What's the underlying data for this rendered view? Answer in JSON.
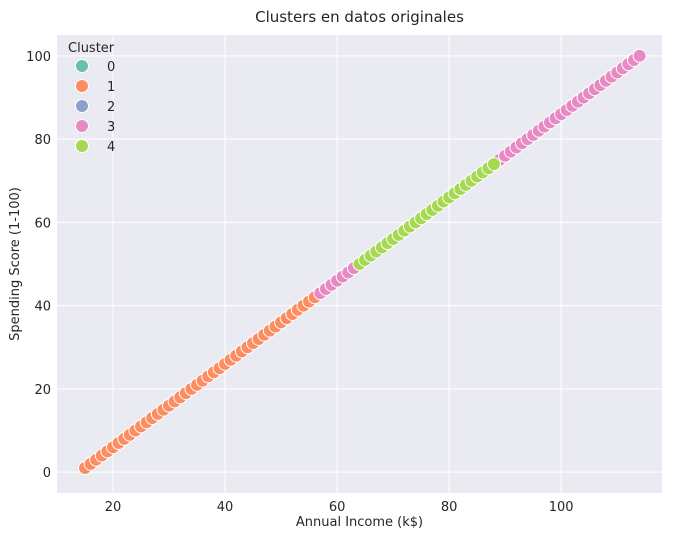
{
  "chart_data": {
    "type": "scatter",
    "title": "Clusters en datos originales",
    "xlabel": "Annual Income (k$)",
    "ylabel": "Spending Score (1-100)",
    "xlim": [
      10,
      118
    ],
    "ylim": [
      -5,
      105
    ],
    "xticks": [
      20,
      40,
      60,
      80,
      100
    ],
    "yticks": [
      0,
      20,
      40,
      60,
      80,
      100
    ],
    "grid": true,
    "legend": {
      "title": "Cluster",
      "placement": "top-left"
    },
    "palette": {
      "0": "#66c2a5",
      "1": "#fc8d62",
      "2": "#8da0cb",
      "3": "#e78ac3",
      "4": "#a6d854"
    },
    "background": "#eaeaf2",
    "series": [
      {
        "name": "0",
        "points": []
      },
      {
        "name": "1",
        "points": [
          [
            15,
            1
          ],
          [
            16,
            2
          ],
          [
            17,
            3
          ],
          [
            18,
            4
          ],
          [
            19,
            5
          ],
          [
            20,
            6
          ],
          [
            21,
            7
          ],
          [
            22,
            8
          ],
          [
            23,
            9
          ],
          [
            24,
            10
          ],
          [
            25,
            11
          ],
          [
            26,
            12
          ],
          [
            27,
            13
          ],
          [
            28,
            14
          ],
          [
            29,
            15
          ],
          [
            30,
            16
          ],
          [
            31,
            17
          ],
          [
            32,
            18
          ],
          [
            33,
            19
          ],
          [
            34,
            20
          ],
          [
            35,
            21
          ],
          [
            36,
            22
          ],
          [
            37,
            23
          ],
          [
            38,
            24
          ],
          [
            39,
            25
          ],
          [
            40,
            26
          ],
          [
            41,
            27
          ],
          [
            42,
            28
          ],
          [
            43,
            29
          ],
          [
            44,
            30
          ],
          [
            45,
            31
          ],
          [
            46,
            32
          ],
          [
            47,
            33
          ],
          [
            48,
            34
          ],
          [
            49,
            35
          ],
          [
            50,
            36
          ],
          [
            51,
            37
          ],
          [
            52,
            38
          ],
          [
            53,
            39
          ],
          [
            54,
            40
          ],
          [
            55,
            41
          ],
          [
            56,
            42
          ]
        ]
      },
      {
        "name": "2",
        "points": []
      },
      {
        "name": "3",
        "points": [
          [
            57,
            43
          ],
          [
            58,
            44
          ],
          [
            59,
            45
          ],
          [
            60,
            46
          ],
          [
            61,
            47
          ],
          [
            62,
            48
          ],
          [
            63,
            49
          ],
          [
            89,
            75
          ],
          [
            90,
            76
          ],
          [
            91,
            77
          ],
          [
            92,
            78
          ],
          [
            93,
            79
          ],
          [
            94,
            80
          ],
          [
            95,
            81
          ],
          [
            96,
            82
          ],
          [
            97,
            83
          ],
          [
            98,
            84
          ],
          [
            99,
            85
          ],
          [
            100,
            86
          ],
          [
            101,
            87
          ],
          [
            102,
            88
          ],
          [
            103,
            89
          ],
          [
            104,
            90
          ],
          [
            105,
            91
          ],
          [
            106,
            92
          ],
          [
            107,
            93
          ],
          [
            108,
            94
          ],
          [
            109,
            95
          ],
          [
            110,
            96
          ],
          [
            111,
            97
          ],
          [
            112,
            98
          ],
          [
            113,
            99
          ],
          [
            114,
            100
          ]
        ]
      },
      {
        "name": "4",
        "points": [
          [
            64,
            50
          ],
          [
            65,
            51
          ],
          [
            66,
            52
          ],
          [
            67,
            53
          ],
          [
            68,
            54
          ],
          [
            69,
            55
          ],
          [
            70,
            56
          ],
          [
            71,
            57
          ],
          [
            72,
            58
          ],
          [
            73,
            59
          ],
          [
            74,
            60
          ],
          [
            75,
            61
          ],
          [
            76,
            62
          ],
          [
            77,
            63
          ],
          [
            78,
            64
          ],
          [
            79,
            65
          ],
          [
            80,
            66
          ],
          [
            81,
            67
          ],
          [
            82,
            68
          ],
          [
            83,
            69
          ],
          [
            84,
            70
          ],
          [
            85,
            71
          ],
          [
            86,
            72
          ],
          [
            87,
            73
          ],
          [
            88,
            74
          ]
        ]
      }
    ]
  }
}
